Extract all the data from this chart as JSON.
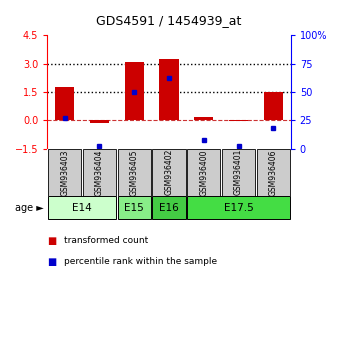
{
  "title": "GDS4591 / 1454939_at",
  "samples": [
    "GSM936403",
    "GSM936404",
    "GSM936405",
    "GSM936402",
    "GSM936400",
    "GSM936401",
    "GSM936406"
  ],
  "red_values": [
    1.75,
    -0.12,
    3.1,
    3.25,
    0.2,
    -0.05,
    1.5
  ],
  "blue_values_pct": [
    27,
    2,
    50,
    62,
    8,
    2,
    18
  ],
  "ylim_left": [
    -1.5,
    4.5
  ],
  "ylim_right": [
    0,
    100
  ],
  "yticks_left": [
    -1.5,
    0,
    1.5,
    3,
    4.5
  ],
  "yticks_right": [
    0,
    25,
    50,
    75,
    100
  ],
  "age_groups": [
    {
      "label": "E14",
      "samples": [
        0,
        1
      ],
      "color": "#ccffcc"
    },
    {
      "label": "E15",
      "samples": [
        2
      ],
      "color": "#88ee88"
    },
    {
      "label": "E16",
      "samples": [
        3
      ],
      "color": "#44cc44"
    },
    {
      "label": "E17.5",
      "samples": [
        4,
        5,
        6
      ],
      "color": "#44dd44"
    }
  ],
  "bar_color": "#cc0000",
  "dot_color": "#0000cc",
  "bar_width": 0.55,
  "sample_box_color": "#cccccc",
  "legend_red": "transformed count",
  "legend_blue": "percentile rank within the sample"
}
